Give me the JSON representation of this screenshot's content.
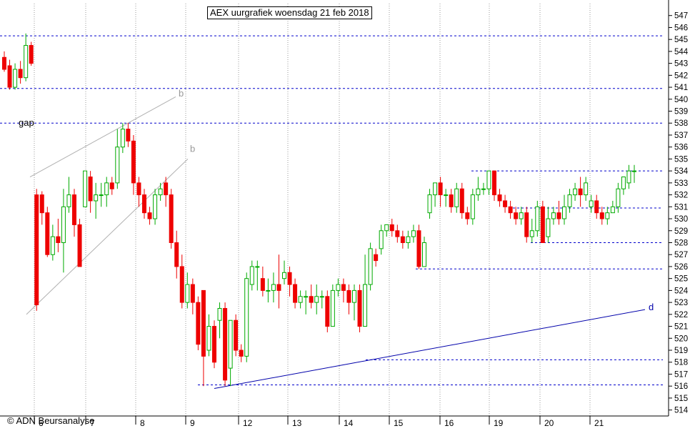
{
  "chart_data": {
    "type": "candlestick",
    "title": "AEX uurgrafiek woensdag 21 feb 2018",
    "footer": "© ADN Beursanalyse",
    "ylim": [
      513.5,
      548
    ],
    "y_ticks": [
      514,
      515,
      516,
      517,
      518,
      519,
      520,
      521,
      522,
      523,
      524,
      525,
      526,
      527,
      528,
      529,
      530,
      531,
      532,
      533,
      534,
      535,
      536,
      537,
      538,
      539,
      540,
      541,
      542,
      543,
      544,
      545,
      546,
      547
    ],
    "x_ticks": [
      "6",
      "7",
      "8",
      "9",
      "12",
      "13",
      "14",
      "15",
      "16",
      "19",
      "20",
      "21"
    ],
    "grid": "vertical dotted",
    "colors": {
      "up": "#00aa00",
      "down": "#ee0000",
      "support": "#0000cc",
      "channel": "#b0b0b0",
      "trend": "#0000aa"
    },
    "support_levels": [
      545.3,
      540.9,
      538.0,
      534.0,
      530.9,
      528.0,
      525.8,
      518.2,
      516.1
    ],
    "annotations": [
      {
        "text": "gap",
        "value": 538.0
      },
      {
        "text": "b",
        "value": 540.6
      },
      {
        "text": "b",
        "value": 535.9
      },
      {
        "text": "d",
        "value": 522.6
      }
    ],
    "candles": [
      [
        543.5,
        542.5,
        544.0,
        542.3
      ],
      [
        542.8,
        541.0,
        543.3,
        540.8
      ],
      [
        541.0,
        542.5,
        543.0,
        540.8
      ],
      [
        542.5,
        541.8,
        543.2,
        541.3
      ],
      [
        541.8,
        544.5,
        545.5,
        541.5
      ],
      [
        544.5,
        543.0,
        544.8,
        542.8
      ],
      [
        532.0,
        522.8,
        532.5,
        522.3
      ],
      [
        532.0,
        530.5,
        532.3,
        529.5
      ],
      [
        530.5,
        527.0,
        531.0,
        526.8
      ],
      [
        527.0,
        528.5,
        529.5,
        526.5
      ],
      [
        528.5,
        528.0,
        530.0,
        527.2
      ],
      [
        528.0,
        531.0,
        532.5,
        525.5
      ],
      [
        531.0,
        532.0,
        533.5,
        530.5
      ],
      [
        532.0,
        529.5,
        532.5,
        528.5
      ],
      [
        529.5,
        526.0,
        530.0,
        526.0
      ],
      [
        531.0,
        534.0,
        534.0,
        531.0
      ],
      [
        533.5,
        531.5,
        534.0,
        530.5
      ],
      [
        531.5,
        532.0,
        533.0,
        530.0
      ],
      [
        532.0,
        532.0,
        533.0,
        531.0
      ],
      [
        532.0,
        533.0,
        533.5,
        531.0
      ],
      [
        533.0,
        532.5,
        533.5,
        532.0
      ],
      [
        533.0,
        536.0,
        537.5,
        532.5
      ],
      [
        536.0,
        537.5,
        538.0,
        535.5
      ],
      [
        537.5,
        536.5,
        538.0,
        536.0
      ],
      [
        536.5,
        533.0,
        537.0,
        532.0
      ],
      [
        533.0,
        532.0,
        533.5,
        531.0
      ],
      [
        532.0,
        530.5,
        532.5,
        530.0
      ],
      [
        530.5,
        530.0,
        531.0,
        529.5
      ],
      [
        530.0,
        532.0,
        532.5,
        529.5
      ],
      [
        532.0,
        532.5,
        533.0,
        531.5
      ],
      [
        533.0,
        532.0,
        533.5,
        531.0
      ],
      [
        532.0,
        528.0,
        532.5,
        527.5
      ],
      [
        528.0,
        526.0,
        529.0,
        525.0
      ],
      [
        526.0,
        523.0,
        527.0,
        522.5
      ],
      [
        523.0,
        524.5,
        525.5,
        522.5
      ],
      [
        524.5,
        523.0,
        525.0,
        522.0
      ],
      [
        523.0,
        519.5,
        523.5,
        519.0
      ],
      [
        524.0,
        518.5,
        524.0,
        516.0
      ],
      [
        519.0,
        521.0,
        522.0,
        518.5
      ],
      [
        521.0,
        518.0,
        521.5,
        517.5
      ],
      [
        521.5,
        522.5,
        523.0,
        520.0
      ],
      [
        522.5,
        516.5,
        523.0,
        516.0
      ],
      [
        517.5,
        521.5,
        521.5,
        516.0
      ],
      [
        521.5,
        519.0,
        522.0,
        518.5
      ],
      [
        519.0,
        518.5,
        519.5,
        518.0
      ],
      [
        518.5,
        525.0,
        525.5,
        518.0
      ],
      [
        524.5,
        526.0,
        526.5,
        524.0
      ],
      [
        526.0,
        526.0,
        526.5,
        524.0
      ],
      [
        525.0,
        524.0,
        526.0,
        523.5
      ],
      [
        524.0,
        524.0,
        525.0,
        523.0
      ],
      [
        524.0,
        524.5,
        525.5,
        523.0
      ],
      [
        524.5,
        524.0,
        527.0,
        522.5
      ],
      [
        525.0,
        525.5,
        526.5,
        524.5
      ],
      [
        525.5,
        524.5,
        526.0,
        523.5
      ],
      [
        524.5,
        523.0,
        525.0,
        522.5
      ],
      [
        523.0,
        523.5,
        524.0,
        522.5
      ],
      [
        523.5,
        523.5,
        524.0,
        522.0
      ],
      [
        523.5,
        523.0,
        524.5,
        522.5
      ],
      [
        523.0,
        523.5,
        524.5,
        522.0
      ],
      [
        523.5,
        523.5,
        524.0,
        522.5
      ],
      [
        523.5,
        521.0,
        524.0,
        520.5
      ],
      [
        521.0,
        524.0,
        524.5,
        521.0
      ],
      [
        524.0,
        524.5,
        525.0,
        523.5
      ],
      [
        524.5,
        524.0,
        525.0,
        523.0
      ],
      [
        524.0,
        523.0,
        524.5,
        522.0
      ],
      [
        523.0,
        524.0,
        524.5,
        521.5
      ],
      [
        524.0,
        521.0,
        524.5,
        520.5
      ],
      [
        521.0,
        524.5,
        527.0,
        521.0
      ],
      [
        524.5,
        527.5,
        528.0,
        524.0
      ],
      [
        527.0,
        526.5,
        527.5,
        526.0
      ],
      [
        527.5,
        529.0,
        529.5,
        527.0
      ],
      [
        529.0,
        529.5,
        529.5,
        528.5
      ],
      [
        529.5,
        529.0,
        530.0,
        528.5
      ],
      [
        529.0,
        528.5,
        529.5,
        528.0
      ],
      [
        528.5,
        528.0,
        529.0,
        527.5
      ],
      [
        528.0,
        528.5,
        529.0,
        527.5
      ],
      [
        528.5,
        529.0,
        529.5,
        528.0
      ],
      [
        529.0,
        526.0,
        529.5,
        525.8
      ],
      [
        526.0,
        528.0,
        528.5,
        526.0
      ],
      [
        530.5,
        532.0,
        532.5,
        530.0
      ],
      [
        532.0,
        533.0,
        533.0,
        531.0
      ],
      [
        533.0,
        532.0,
        533.5,
        531.0
      ],
      [
        532.0,
        532.0,
        532.5,
        531.0
      ],
      [
        532.0,
        531.0,
        532.5,
        530.5
      ],
      [
        531.0,
        532.5,
        533.0,
        530.5
      ],
      [
        532.5,
        530.5,
        533.0,
        530.0
      ],
      [
        530.5,
        530.0,
        531.0,
        529.5
      ],
      [
        530.0,
        532.0,
        532.5,
        529.5
      ],
      [
        532.0,
        532.5,
        533.5,
        531.5
      ],
      [
        532.5,
        532.5,
        533.0,
        532.0
      ],
      [
        532.5,
        534.0,
        534.0,
        532.0
      ],
      [
        534.0,
        532.0,
        534.0,
        531.5
      ],
      [
        532.0,
        531.5,
        532.5,
        531.0
      ],
      [
        531.5,
        531.0,
        532.0,
        530.5
      ],
      [
        531.0,
        530.5,
        531.5,
        530.0
      ],
      [
        530.5,
        530.0,
        531.0,
        529.5
      ],
      [
        530.0,
        530.5,
        531.0,
        529.5
      ],
      [
        530.5,
        528.5,
        531.0,
        528.0
      ],
      [
        528.5,
        529.0,
        530.0,
        528.0
      ],
      [
        529.0,
        531.0,
        531.5,
        528.5
      ],
      [
        531.0,
        528.0,
        531.5,
        528.0
      ],
      [
        528.5,
        530.0,
        531.0,
        528.0
      ],
      [
        530.0,
        530.5,
        531.0,
        529.5
      ],
      [
        530.5,
        530.0,
        531.5,
        529.5
      ],
      [
        530.0,
        531.0,
        532.0,
        529.5
      ],
      [
        531.0,
        532.0,
        532.5,
        530.5
      ],
      [
        532.0,
        532.5,
        533.0,
        531.5
      ],
      [
        532.5,
        532.0,
        533.5,
        531.0
      ],
      [
        532.0,
        533.0,
        533.5,
        531.5
      ],
      [
        531.0,
        531.5,
        532.0,
        530.5
      ],
      [
        531.5,
        530.5,
        532.0,
        530.0
      ],
      [
        530.5,
        530.0,
        531.0,
        529.5
      ],
      [
        530.0,
        530.5,
        531.0,
        529.5
      ],
      [
        530.5,
        531.0,
        531.5,
        530.5
      ],
      [
        531.0,
        532.5,
        533.0,
        530.5
      ],
      [
        532.5,
        533.5,
        533.5,
        532.0
      ],
      [
        533.0,
        534.0,
        534.5,
        532.5
      ],
      [
        534.0,
        534.0,
        534.5,
        533.0
      ]
    ]
  }
}
